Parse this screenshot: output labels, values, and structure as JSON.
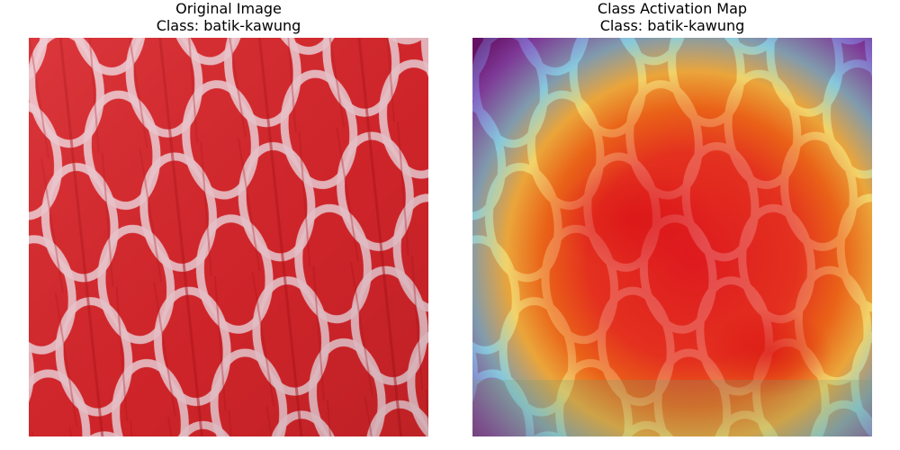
{
  "panels": [
    {
      "title": "Original Image",
      "class_line": "Class: batik-kawung"
    },
    {
      "title": "Class Activation Map",
      "class_line": "Class: batik-kawung"
    }
  ],
  "colors": {
    "fabric_red": "#d8262b",
    "fabric_dark": "#b3141a",
    "motif_white": "#f0c8d0",
    "heat_hot": "#e0151a",
    "heat_warm": "#f07a10",
    "heat_mid": "#f2d640",
    "heat_cool": "#5ec8e0",
    "heat_cold": "#5a3fc0",
    "heat_coldest": "#3a0a7a"
  }
}
